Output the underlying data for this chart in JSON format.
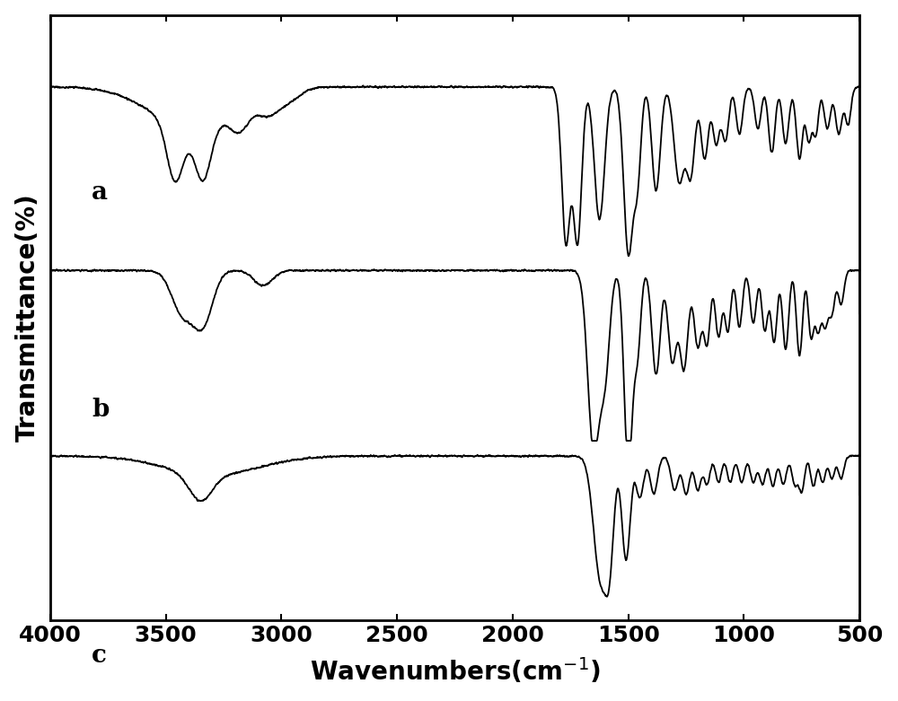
{
  "xlabel": "Wavenumbers(cm$^{-1}$)",
  "ylabel": "Transmittance(%)",
  "xticks": [
    4000,
    3500,
    3000,
    2500,
    2000,
    1500,
    1000,
    500
  ],
  "labels": [
    "a",
    "b",
    "c"
  ],
  "line_color": "#000000",
  "background_color": "#ffffff",
  "label_fontsize": 20,
  "tick_fontsize": 18,
  "linewidth": 1.3
}
